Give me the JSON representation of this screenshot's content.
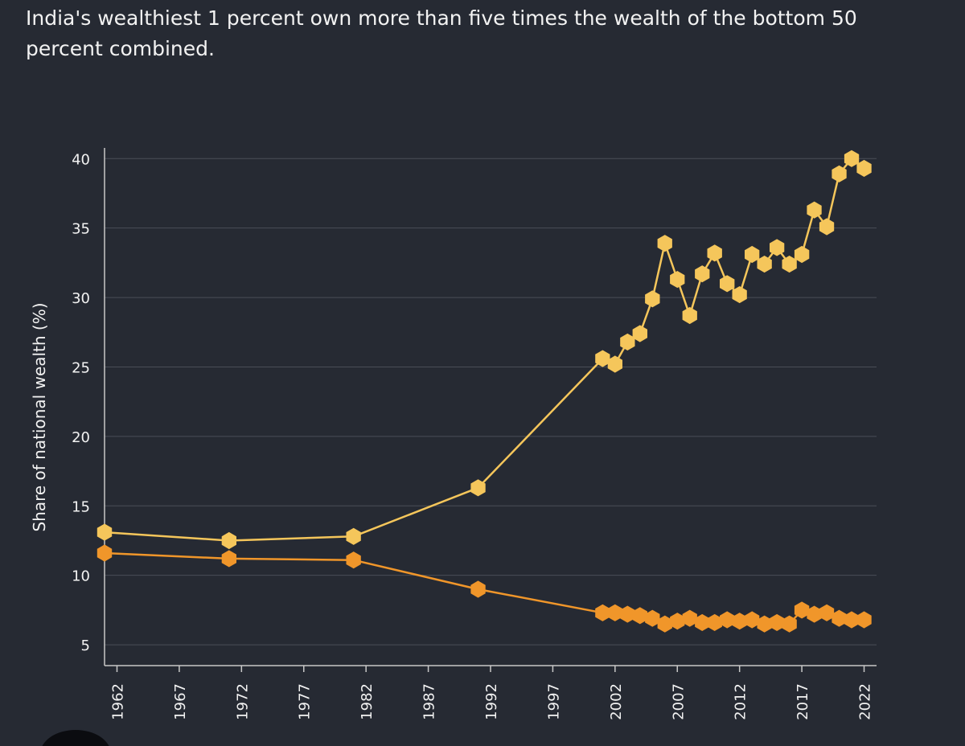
{
  "chart_data": {
    "type": "line",
    "title": "India's wealthiest 1 percent own more than five times the wealth of the bottom 50 percent combined.",
    "xlabel": "",
    "ylabel": "Share of national wealth (%)",
    "xlim": [
      1961,
      2023
    ],
    "ylim": [
      3.5,
      41
    ],
    "x_ticks": [
      1962,
      1967,
      1972,
      1977,
      1982,
      1987,
      1992,
      1997,
      2002,
      2007,
      2012,
      2017,
      2022
    ],
    "y_ticks": [
      5,
      10,
      15,
      20,
      25,
      30,
      35,
      40
    ],
    "grid": true,
    "legend": "none",
    "series": [
      {
        "color": "#f5c65b",
        "points": [
          [
            1961,
            13.1
          ],
          [
            1971,
            12.5
          ],
          [
            1981,
            12.8
          ],
          [
            1991,
            16.3
          ],
          [
            2001,
            25.6
          ],
          [
            2002,
            25.2
          ],
          [
            2003,
            26.8
          ],
          [
            2004,
            27.4
          ],
          [
            2005,
            29.9
          ],
          [
            2006,
            33.9
          ],
          [
            2007,
            31.3
          ],
          [
            2008,
            28.7
          ],
          [
            2009,
            31.7
          ],
          [
            2010,
            33.2
          ],
          [
            2011,
            31.0
          ],
          [
            2012,
            30.2
          ],
          [
            2013,
            33.1
          ],
          [
            2014,
            32.4
          ],
          [
            2015,
            33.6
          ],
          [
            2016,
            32.4
          ],
          [
            2017,
            33.1
          ],
          [
            2018,
            36.3
          ],
          [
            2019,
            35.1
          ],
          [
            2020,
            38.9
          ],
          [
            2021,
            40.0
          ],
          [
            2022,
            39.3
          ]
        ]
      },
      {
        "color": "#f0962a",
        "points": [
          [
            1961,
            11.6
          ],
          [
            1971,
            11.2
          ],
          [
            1981,
            11.1
          ],
          [
            1991,
            9.0
          ],
          [
            2001,
            7.3
          ],
          [
            2002,
            7.3
          ],
          [
            2003,
            7.2
          ],
          [
            2004,
            7.1
          ],
          [
            2005,
            6.9
          ],
          [
            2006,
            6.5
          ],
          [
            2007,
            6.7
          ],
          [
            2008,
            6.9
          ],
          [
            2009,
            6.6
          ],
          [
            2010,
            6.6
          ],
          [
            2011,
            6.8
          ],
          [
            2012,
            6.7
          ],
          [
            2013,
            6.8
          ],
          [
            2014,
            6.5
          ],
          [
            2015,
            6.6
          ],
          [
            2016,
            6.5
          ],
          [
            2017,
            7.5
          ],
          [
            2018,
            7.2
          ],
          [
            2019,
            7.3
          ],
          [
            2020,
            6.9
          ],
          [
            2021,
            6.8
          ],
          [
            2022,
            6.8
          ]
        ]
      }
    ]
  },
  "colors": {
    "background": "#262a33",
    "grid": "#4a4e57",
    "axis": "#c8c8c8",
    "text": "#f2f2f2"
  }
}
